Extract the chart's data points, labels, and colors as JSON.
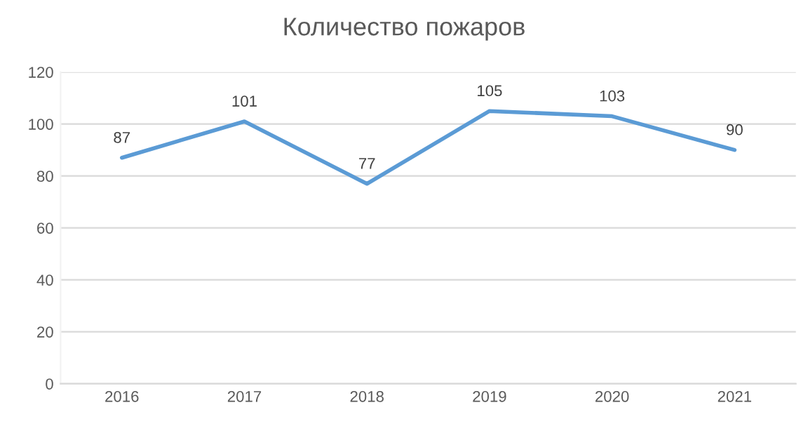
{
  "chart_data": {
    "type": "line",
    "title": "Количество пожаров",
    "categories": [
      "2016",
      "2017",
      "2018",
      "2019",
      "2020",
      "2021"
    ],
    "series": [
      {
        "color": "#5b9bd5",
        "values": [
          87,
          101,
          77,
          105,
          103,
          90
        ]
      }
    ],
    "ylim": [
      0,
      120
    ],
    "yticks": [
      0,
      20,
      40,
      60,
      80,
      100,
      120
    ],
    "grid": "y",
    "data_labels": true,
    "marker": "none",
    "line_style": "solid",
    "legend": false
  }
}
